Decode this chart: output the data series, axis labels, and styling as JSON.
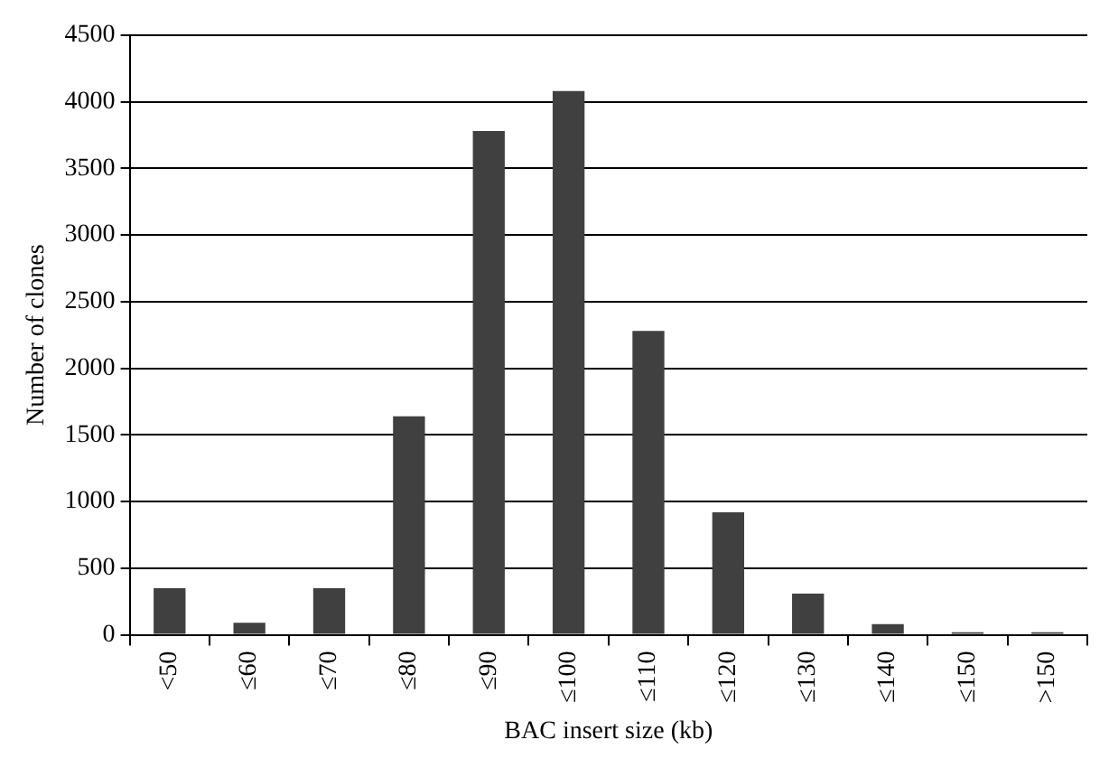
{
  "chart_data": {
    "type": "bar",
    "xlabel": "BAC insert size (kb)",
    "ylabel": "Number of clones",
    "categories": [
      "<50",
      "≤60",
      "≤70",
      "≤80",
      "≤90",
      "≤100",
      "≤110",
      "≤120",
      "≤130",
      "≤140",
      "≤150",
      ">150"
    ],
    "values": [
      350,
      90,
      350,
      1640,
      3780,
      4080,
      2280,
      920,
      310,
      80,
      20,
      20
    ],
    "color": "#404040",
    "ylim": [
      0,
      4500
    ],
    "yticks": [
      0,
      500,
      1000,
      1500,
      2000,
      2500,
      3000,
      3500,
      4000,
      4500
    ],
    "grid": "y",
    "legend": false
  }
}
